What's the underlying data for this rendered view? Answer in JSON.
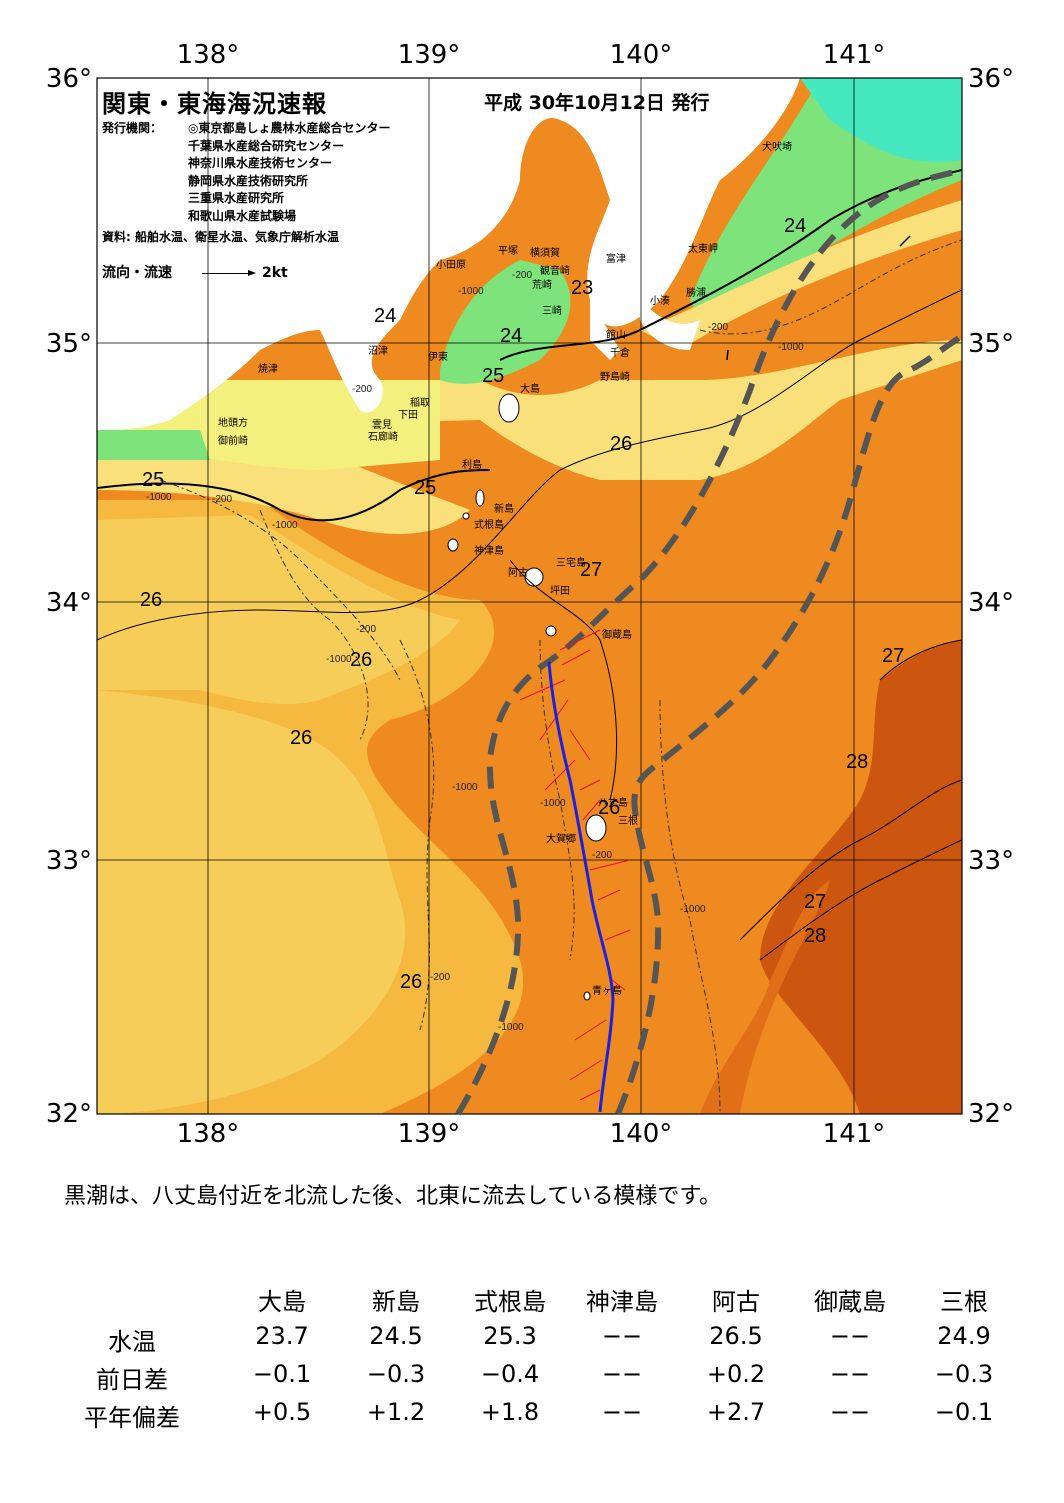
{
  "map": {
    "title": "関東・東海海況速報",
    "issue_date": "平成 30年10月12日 発行",
    "publishers_label": "発行機関：",
    "publishers": [
      "◎東京都島しょ農林水産総合センター",
      "千葉県水産総合研究センター",
      "神奈川県水産技術センター",
      "静岡県水産技術研究所",
      "三重県水産研究所",
      "和歌山県水産試験場"
    ],
    "sources": "資料: 船舶水温、衛星水温、気象庁解析水温",
    "legend_label": "流向・流速",
    "legend_speed": "2kt",
    "lon_labels": [
      "138°",
      "139°",
      "140°",
      "141°"
    ],
    "lat_labels": [
      "36°",
      "35°",
      "34°",
      "33°",
      "32°"
    ],
    "isotherm_labels": [
      "23",
      "24",
      "24",
      "24",
      "25",
      "25",
      "25",
      "26",
      "26",
      "26",
      "26",
      "26",
      "26",
      "27",
      "27",
      "27",
      "28",
      "28"
    ],
    "depth_labels": [
      "-200",
      "-1000"
    ],
    "place_names": [
      "犬吠埼",
      "太東岬",
      "勝浦",
      "小湊",
      "富津",
      "横須賀",
      "平塚",
      "小田原",
      "観音崎",
      "荒崎",
      "三崎",
      "館山",
      "千倉",
      "野島崎",
      "沼津",
      "伊東",
      "焼津",
      "稲取",
      "下田",
      "雲見",
      "石廊崎",
      "地頭方",
      "御前崎",
      "大島",
      "利島",
      "新島",
      "式根島",
      "神津島",
      "三宅島",
      "阿古",
      "坪田",
      "御蔵島",
      "八丈島",
      "三根",
      "大賀郷",
      "青ヶ島"
    ],
    "colors": {
      "t23": "#46e8c0",
      "t24": "#7ee37a",
      "t24b": "#f4f07e",
      "t25": "#f9e07a",
      "t25b": "#f7cd5a",
      "t26": "#f6b93f",
      "t26b": "#f29c2a",
      "t27": "#ee8a1f",
      "t27b": "#e06f17",
      "t28": "#cc5610",
      "land": "#ffffff",
      "kuroshio": "#555555",
      "track": "#1a22e0",
      "vector": "#e8102a"
    }
  },
  "summary": "黒潮は、八丈島付近を北流した後、北東に流去している模様です。",
  "table": {
    "stations": [
      "大島",
      "新島",
      "式根島",
      "神津島",
      "阿古",
      "御蔵島",
      "三根"
    ],
    "rows": [
      {
        "label": "水温",
        "values": [
          "23.7",
          "24.5",
          "25.3",
          "−−",
          "26.5",
          "−−",
          "24.9"
        ]
      },
      {
        "label": "前日差",
        "values": [
          "−0.1",
          "−0.3",
          "−0.4",
          "−−",
          "+0.2",
          "−−",
          "−0.3"
        ]
      },
      {
        "label": "平年偏差",
        "values": [
          "+0.5",
          "+1.2",
          "+1.8",
          "−−",
          "+2.7",
          "−−",
          "−0.1"
        ]
      }
    ]
  }
}
